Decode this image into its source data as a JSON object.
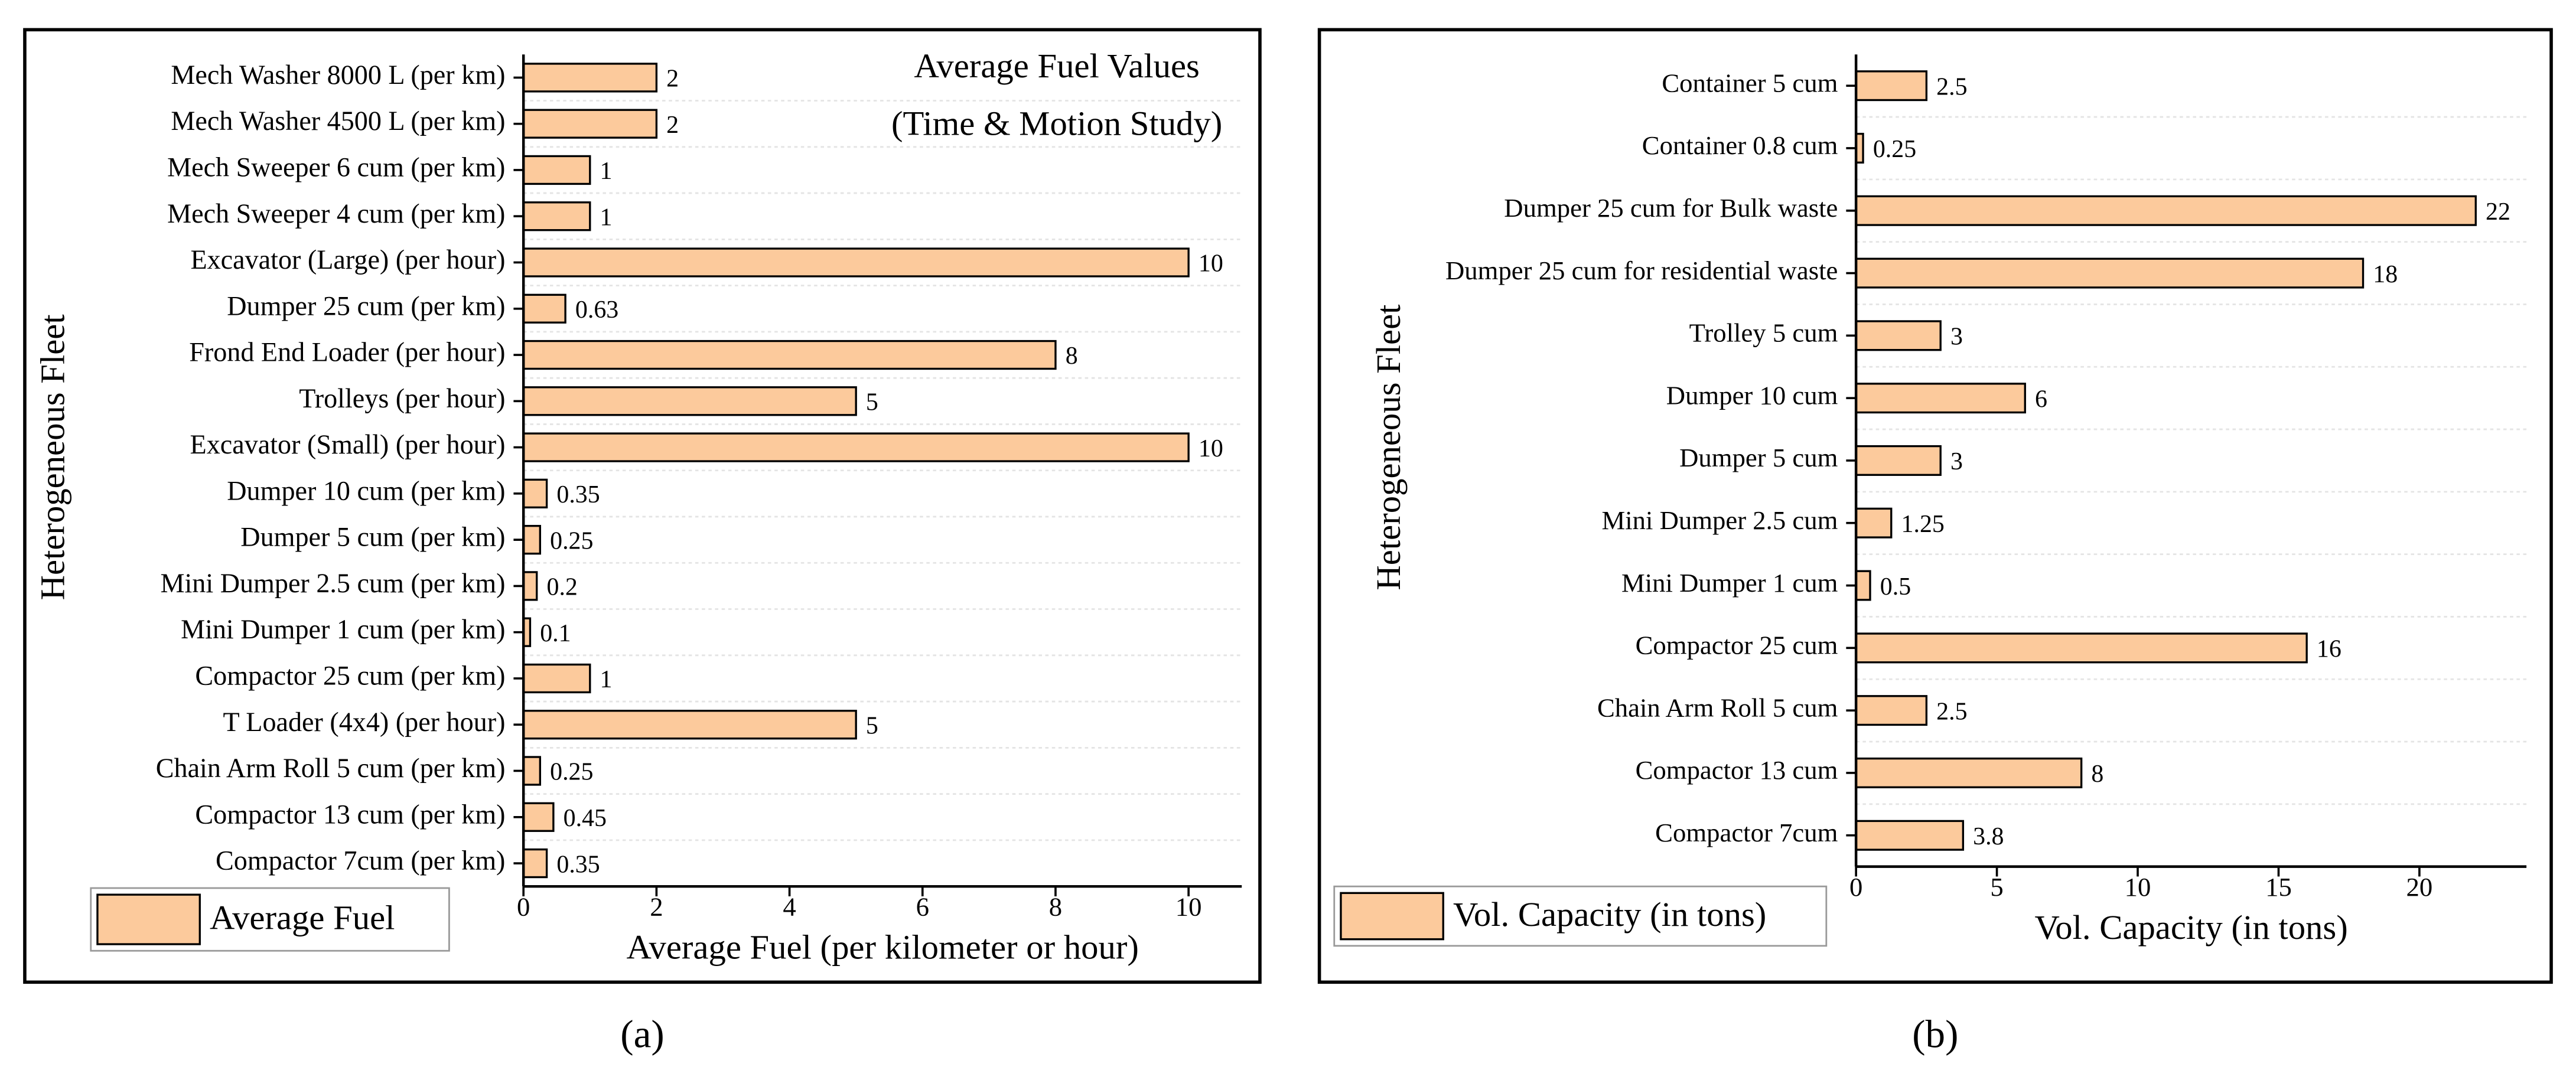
{
  "chart_data": [
    {
      "type": "hbar",
      "panel_label": "(a)",
      "title": "Average Fuel Values",
      "subtitle": "(Time & Motion Study)",
      "y_label": "Heterogeneous Fleet",
      "x_label": "Average Fuel (per kilometer or hour)",
      "categories": [
        "Mech Washer 8000 L (per km)",
        "Mech Washer 4500 L (per km)",
        "Mech Sweeper 6 cum (per km)",
        "Mech Sweeper 4 cum (per km)",
        "Excavator (Large) (per hour)",
        "Dumper 25 cum (per km)",
        "Frond End Loader (per hour)",
        "Trolleys (per hour)",
        "Excavator (Small) (per hour)",
        "Dumper 10 cum (per km)",
        "Dumper 5 cum (per km)",
        "Mini Dumper 2.5 cum (per km)",
        "Mini Dumper 1 cum (per km)",
        "Compactor 25 cum (per km)",
        "T Loader (4x4) (per hour)",
        "Chain Arm Roll 5 cum (per km)",
        "Compactor 13 cum (per km)",
        "Compactor 7cum (per km)"
      ],
      "series": [
        {
          "name": "Average Fuel",
          "color": "#fcca9c",
          "values": [
            2,
            2,
            1,
            1,
            10,
            0.63,
            8,
            5,
            10,
            0.35,
            0.25,
            0.2,
            0.1,
            1,
            5,
            0.25,
            0.45,
            0.35
          ]
        }
      ],
      "xlim": [
        0,
        10.8
      ],
      "xticks": [
        0,
        2,
        4,
        6,
        8,
        10
      ]
    },
    {
      "type": "hbar",
      "panel_label": "(b)",
      "y_label": "Heterogeneous Fleet",
      "x_label": "Vol. Capacity (in tons)",
      "categories": [
        "Container 5 cum",
        "Container 0.8 cum",
        "Dumper 25 cum for Bulk waste",
        "Dumper 25 cum for residential waste",
        "Trolley 5 cum",
        "Dumper 10 cum",
        "Dumper 5 cum",
        "Mini Dumper 2.5 cum",
        "Mini Dumper 1 cum",
        "Compactor 25 cum",
        "Chain Arm Roll 5 cum",
        "Compactor 13 cum",
        "Compactor 7cum"
      ],
      "series": [
        {
          "name": "Vol. Capacity (in tons)",
          "color": "#fcca9c",
          "values": [
            2.5,
            0.25,
            22,
            18,
            3,
            6,
            3,
            1.25,
            0.5,
            16,
            2.5,
            8,
            3.8
          ]
        }
      ],
      "xlim": [
        0,
        23.8
      ],
      "xticks": [
        0,
        5,
        10,
        15,
        20
      ]
    }
  ]
}
